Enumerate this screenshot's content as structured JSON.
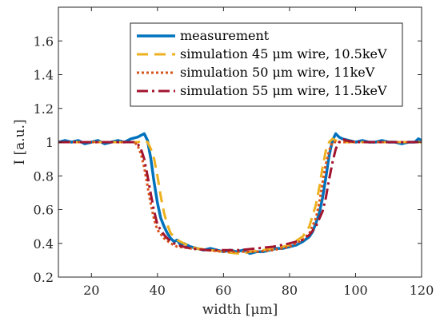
{
  "chart_data": {
    "type": "line",
    "xlabel": "width [μm]",
    "ylabel": "I [a.u.]",
    "title": "",
    "xlim": [
      10,
      120
    ],
    "ylim": [
      0.2,
      1.8
    ],
    "xticks": [
      20,
      40,
      60,
      80,
      100,
      120
    ],
    "yticks": [
      0.2,
      0.4,
      0.6,
      0.8,
      1.0,
      1.2,
      1.4,
      1.6
    ],
    "xtick_labels": [
      "20",
      "40",
      "60",
      "80",
      "100",
      "120"
    ],
    "ytick_labels": [
      "0.2",
      "0.4",
      "0.6",
      "0.8",
      "1",
      "1.2",
      "1.4",
      "1.6"
    ],
    "grid": false,
    "legend_position": "top-right",
    "series": [
      {
        "name": "measurement",
        "color": "#0072BD",
        "style": "solid",
        "x": [
          10,
          12,
          14,
          16,
          18,
          20,
          22,
          24,
          26,
          28,
          30,
          32,
          34,
          35,
          36,
          37,
          38,
          39,
          40,
          41,
          42,
          43,
          44,
          45,
          46,
          47,
          48,
          50,
          52,
          54,
          56,
          58,
          60,
          62,
          64,
          66,
          68,
          70,
          72,
          74,
          76,
          78,
          80,
          82,
          84,
          86,
          87,
          88,
          89,
          90,
          91,
          92,
          93,
          94,
          95,
          96,
          98,
          100,
          102,
          104,
          106,
          108,
          110,
          112,
          114,
          116,
          118,
          119,
          120
        ],
        "values": [
          1.0,
          1.01,
          1.0,
          1.01,
          0.99,
          1.0,
          1.01,
          0.99,
          1.0,
          1.01,
          1.0,
          1.02,
          1.03,
          1.04,
          1.05,
          1.01,
          0.9,
          0.76,
          0.64,
          0.55,
          0.5,
          0.46,
          0.43,
          0.41,
          0.42,
          0.39,
          0.4,
          0.38,
          0.37,
          0.36,
          0.37,
          0.36,
          0.35,
          0.36,
          0.35,
          0.36,
          0.34,
          0.35,
          0.35,
          0.36,
          0.37,
          0.37,
          0.38,
          0.39,
          0.41,
          0.44,
          0.47,
          0.52,
          0.58,
          0.67,
          0.79,
          0.92,
          1.01,
          1.05,
          1.03,
          1.02,
          1.01,
          1.0,
          1.01,
          1.0,
          1.0,
          1.01,
          1.0,
          1.0,
          0.99,
          1.0,
          1.0,
          1.02,
          1.01
        ]
      },
      {
        "name": "simulation 45 μm wire, 10.5keV",
        "color": "#EDB120",
        "style": "dashed",
        "x": [
          10,
          20,
          30,
          34,
          36,
          37,
          38,
          39,
          40,
          41,
          42,
          43,
          44,
          46,
          48,
          50,
          52,
          56,
          60,
          64,
          66,
          68,
          72,
          76,
          80,
          84,
          86,
          88,
          89,
          90,
          91,
          92,
          93,
          94,
          96,
          100,
          110,
          120
        ],
        "values": [
          1.0,
          1.0,
          1.0,
          1.0,
          1.01,
          1.0,
          0.96,
          0.9,
          0.8,
          0.68,
          0.58,
          0.51,
          0.46,
          0.42,
          0.4,
          0.38,
          0.37,
          0.36,
          0.35,
          0.34,
          0.34,
          0.35,
          0.36,
          0.37,
          0.39,
          0.44,
          0.5,
          0.63,
          0.73,
          0.85,
          0.95,
          1.0,
          1.02,
          1.01,
          1.0,
          1.0,
          1.0,
          1.0
        ]
      },
      {
        "name": "simulation 50 μm wire, 11keV",
        "color": "#D95319",
        "style": "dotted",
        "x": [
          10,
          20,
          30,
          33,
          34,
          35,
          36,
          37,
          38,
          39,
          40,
          42,
          44,
          46,
          50,
          55,
          60,
          65,
          70,
          75,
          80,
          84,
          86,
          88,
          89,
          90,
          91,
          92,
          93,
          94,
          96,
          100,
          110,
          120
        ],
        "values": [
          1.0,
          1.0,
          1.0,
          1.0,
          0.98,
          0.93,
          0.85,
          0.74,
          0.63,
          0.54,
          0.48,
          0.43,
          0.4,
          0.38,
          0.37,
          0.36,
          0.35,
          0.35,
          0.35,
          0.36,
          0.38,
          0.42,
          0.46,
          0.55,
          0.64,
          0.76,
          0.87,
          0.95,
          1.0,
          1.0,
          1.0,
          1.0,
          1.0,
          1.0
        ]
      },
      {
        "name": "simulation 55 μm wire, 11.5keV",
        "color": "#A2142F",
        "style": "dashdot",
        "x": [
          10,
          20,
          30,
          33,
          34,
          35,
          36,
          37,
          38,
          39,
          40,
          42,
          44,
          46,
          50,
          55,
          60,
          65,
          70,
          75,
          80,
          84,
          86,
          88,
          90,
          91,
          92,
          93,
          94,
          95,
          96,
          97,
          100,
          110,
          120
        ],
        "values": [
          1.0,
          1.0,
          1.0,
          1.0,
          0.99,
          0.96,
          0.9,
          0.8,
          0.69,
          0.59,
          0.51,
          0.45,
          0.41,
          0.39,
          0.37,
          0.36,
          0.36,
          0.36,
          0.37,
          0.38,
          0.4,
          0.42,
          0.45,
          0.5,
          0.59,
          0.67,
          0.78,
          0.88,
          0.96,
          1.0,
          1.02,
          1.01,
          1.0,
          1.0,
          1.0
        ]
      }
    ]
  }
}
